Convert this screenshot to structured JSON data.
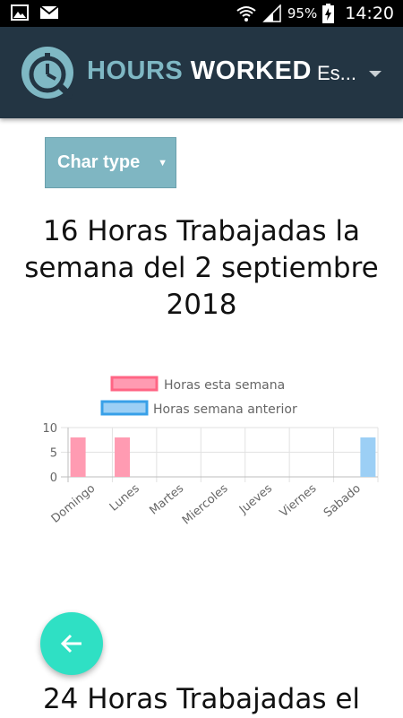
{
  "status_bar": {
    "battery_percent": "95%",
    "time": "14:20",
    "icons": [
      "image-icon",
      "email-icon",
      "wifi-icon",
      "signal-icon",
      "battery-charging-icon"
    ]
  },
  "app_bar": {
    "title_part1": "HOURS",
    "title_part2": "WORKED",
    "language_selected": "Es...",
    "logo_icon": "clock-logo-icon"
  },
  "chart_type_select": {
    "label": "Char type"
  },
  "sections": [
    {
      "heading": "16 Horas Trabajadas la semana del 2 septiembre 2018"
    },
    {
      "heading": "24 Horas Trabajadas el"
    }
  ],
  "fab": {
    "icon": "arrow-left-icon"
  },
  "colors": {
    "app_bar": "#233543",
    "title_accent": "#7fb8c4",
    "this_week_fill": "#ff9bb2",
    "this_week_border": "#ff6584",
    "last_week_fill": "#9ccff5",
    "last_week_border": "#38a0e8",
    "fab": "#2fe0c4"
  },
  "chart_data": {
    "type": "bar",
    "categories": [
      "Domingo",
      "Lunes",
      "Martes",
      "Miercoles",
      "Jueves",
      "Viernes",
      "Sabado"
    ],
    "series": [
      {
        "name": "Horas esta semana",
        "values": [
          8,
          8,
          0,
          0,
          0,
          0,
          0
        ]
      },
      {
        "name": "Horas semana anterior",
        "values": [
          0,
          0,
          0,
          0,
          0,
          0,
          8
        ]
      }
    ],
    "yticks": [
      "10",
      "5",
      "0"
    ],
    "ylim": [
      0,
      10
    ],
    "legend_position": "top",
    "grid": true
  }
}
